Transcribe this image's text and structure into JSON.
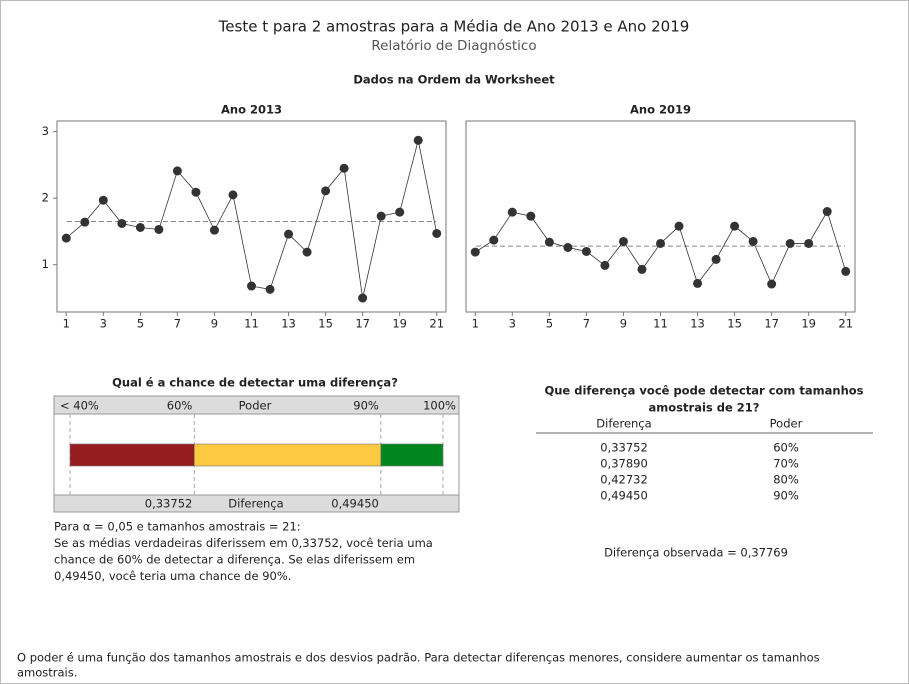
{
  "header": {
    "title": "Teste t para 2 amostras para a Média de Ano 2013 e Ano 2019",
    "subtitle": "Relatório de Diagnóstico",
    "section": "Dados na Ordem da Worksheet"
  },
  "chart_data": [
    {
      "type": "line",
      "title": "Ano 2013",
      "x": [
        1,
        2,
        3,
        4,
        5,
        6,
        7,
        8,
        9,
        10,
        11,
        12,
        13,
        14,
        15,
        16,
        17,
        18,
        19,
        20,
        21
      ],
      "series": [
        {
          "name": "Ano 2013",
          "color": "#333333",
          "values": [
            1.4,
            1.64,
            1.97,
            1.62,
            1.56,
            1.53,
            2.41,
            2.09,
            1.52,
            2.05,
            0.68,
            0.63,
            1.46,
            1.19,
            2.11,
            2.45,
            0.5,
            1.73,
            1.79,
            2.87,
            1.47
          ]
        }
      ],
      "mean": 1.65,
      "xlim": [
        0.5,
        21.5
      ],
      "xticks": [
        1,
        3,
        5,
        7,
        9,
        11,
        13,
        15,
        17,
        19,
        21
      ],
      "ylim": [
        0.29,
        3.16
      ],
      "yticks": [
        1,
        2,
        3
      ]
    },
    {
      "type": "line",
      "title": "Ano 2019",
      "x": [
        1,
        2,
        3,
        4,
        5,
        6,
        7,
        8,
        9,
        10,
        11,
        12,
        13,
        14,
        15,
        16,
        17,
        18,
        19,
        20,
        21
      ],
      "series": [
        {
          "name": "Ano 2019",
          "color": "#333333",
          "values": [
            1.19,
            1.37,
            1.79,
            1.73,
            1.34,
            1.26,
            1.2,
            0.99,
            1.35,
            0.93,
            1.32,
            1.58,
            0.72,
            1.08,
            1.58,
            1.35,
            0.71,
            1.32,
            1.32,
            1.8,
            0.9
          ]
        }
      ],
      "mean": 1.28,
      "xlim": [
        0.5,
        21.5
      ],
      "xticks": [
        1,
        3,
        5,
        7,
        9,
        11,
        13,
        15,
        17,
        19,
        21
      ],
      "ylim": [
        0.29,
        3.16
      ]
    }
  ],
  "power": {
    "title": "Qual é a chance de detectar uma diferença?",
    "axis_label": "Poder",
    "lim": [
      40,
      100
    ],
    "ticks": [
      {
        "value": 40,
        "label": "< 40%"
      },
      {
        "value": 60,
        "label": "60%"
      },
      {
        "value": 90,
        "label": "90%"
      },
      {
        "value": 100,
        "label": "100%"
      }
    ],
    "bands": [
      {
        "start": 40,
        "end": 60,
        "color": "#951c1f"
      },
      {
        "start": 60,
        "end": 90,
        "color": "#fdc842"
      },
      {
        "start": 90,
        "end": 100,
        "color": "#00861f"
      }
    ],
    "diff_label": "Diferença",
    "differences": [
      {
        "power": 60,
        "value": 0.33752,
        "label": "0,33752"
      },
      {
        "power": 90,
        "value": 0.4945,
        "label": "0,49450"
      }
    ],
    "text": [
      "Para α = 0,05 e tamanhos amostrais = 21:",
      "Se as médias verdadeiras diferissem em 0,33752, você teria uma",
      "chance de 60% de detectar a diferença. Se elas diferissem em",
      "0,49450, você teria uma chance de 90%."
    ]
  },
  "table": {
    "title": [
      "Que diferença você pode detectar com tamanhos",
      "amostrais de 21?"
    ],
    "header": [
      "Diferença",
      "Poder"
    ],
    "rows": [
      [
        "0,33752",
        "60%"
      ],
      [
        "0,37890",
        "70%"
      ],
      [
        "0,42732",
        "80%"
      ],
      [
        "0,49450",
        "90%"
      ]
    ]
  },
  "observed": "Diferença observada = 0,37769",
  "note": [
    "O poder é uma função dos tamanhos amostrais e dos desvios padrão. Para detectar diferenças menores, considere aumentar os tamanhos",
    "amostrais."
  ]
}
